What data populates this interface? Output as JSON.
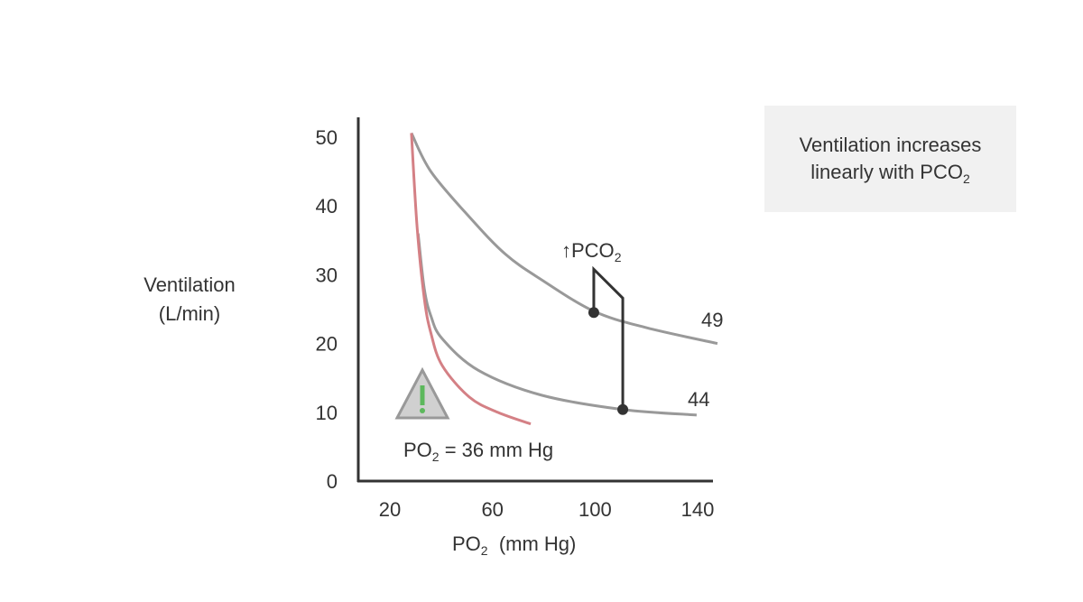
{
  "chart_data": {
    "type": "line",
    "xlabel": "PO",
    "xlabel_sub": "2",
    "xlabel_unit": "(mm Hg)",
    "ylabel_line1": "Ventilation",
    "ylabel_line2": "(L/min)",
    "xlim": [
      8,
      150
    ],
    "ylim": [
      0,
      53
    ],
    "x_ticks": [
      20,
      60,
      100,
      140
    ],
    "y_ticks": [
      0,
      10,
      20,
      30,
      40,
      50
    ],
    "grid": false,
    "series": [
      {
        "name": "49",
        "color": "#999999",
        "points": [
          [
            28.4,
            50.6
          ],
          [
            36,
            45
          ],
          [
            51,
            38.4
          ],
          [
            65,
            33
          ],
          [
            79,
            29.3
          ],
          [
            99.5,
            24.7
          ],
          [
            120,
            22.3
          ],
          [
            147.7,
            20
          ]
        ]
      },
      {
        "name": "44",
        "color": "#999999",
        "points": [
          [
            31,
            36
          ],
          [
            33.4,
            28
          ],
          [
            36,
            24
          ],
          [
            40.4,
            20.7
          ],
          [
            54.5,
            16.1
          ],
          [
            79,
            12.5
          ],
          [
            110.8,
            10.4
          ],
          [
            139.6,
            9.6
          ]
        ]
      },
      {
        "name": "",
        "color": "#d48085",
        "points": [
          [
            28.4,
            50.6
          ],
          [
            30.6,
            37
          ],
          [
            33.4,
            26.6
          ],
          [
            36,
            21.5
          ],
          [
            40.4,
            16.8
          ],
          [
            51,
            12.2
          ],
          [
            62,
            10
          ],
          [
            74.9,
            8.3
          ]
        ]
      }
    ],
    "shift_path": [
      [
        99.5,
        24.5
      ],
      [
        99.5,
        30.8
      ],
      [
        110.8,
        26.6
      ],
      [
        110.8,
        10.4
      ]
    ],
    "shift_points": [
      [
        99.5,
        24.5
      ],
      [
        110.8,
        10.4
      ]
    ],
    "annotations": {
      "shift_label": "↑PCO",
      "shift_label_sub": "2",
      "curve_upper_label": "49",
      "curve_lower_label": "44",
      "threshold_label": "PO",
      "threshold_sub": "2",
      "threshold_rest": " = 36 mm Hg",
      "warning_icon": "warning-triangle",
      "warning_color": "#5cb85c"
    }
  },
  "note": {
    "line1": "Ventilation increases",
    "line2": "linearly with PCO",
    "sub": "2"
  }
}
